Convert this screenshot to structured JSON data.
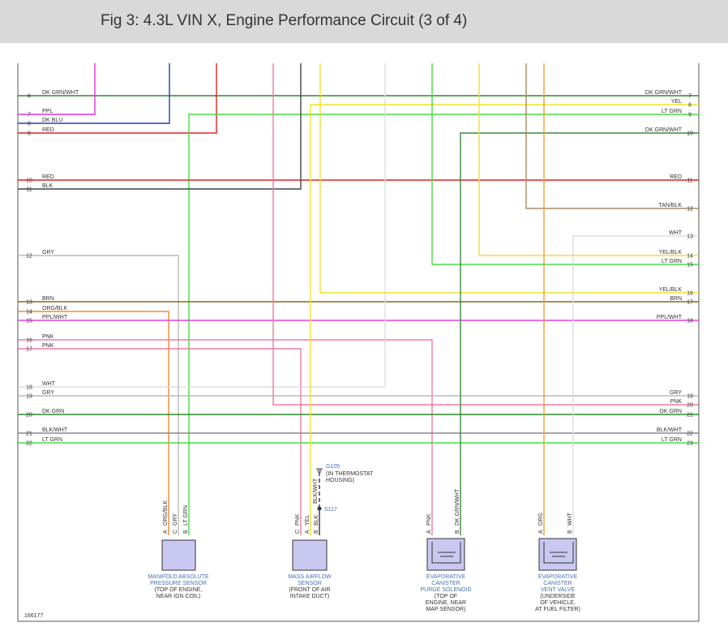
{
  "header": {
    "title": "Fig 3: 4.3L VIN X, Engine Performance Circuit (3 of 4)"
  },
  "left_pins": [
    {
      "pin": 6,
      "label": "DK GRN/WHT"
    },
    {
      "pin": 7,
      "label": "PPL"
    },
    {
      "pin": 8,
      "label": "DK BLU"
    },
    {
      "pin": 9,
      "label": "RED"
    },
    {
      "pin": 10,
      "label": "RED"
    },
    {
      "pin": 11,
      "label": "BLK"
    },
    {
      "pin": 12,
      "label": "GRY"
    },
    {
      "pin": 13,
      "label": "BRN"
    },
    {
      "pin": 14,
      "label": "ORG/BLK"
    },
    {
      "pin": 15,
      "label": "PPL/WHT"
    },
    {
      "pin": 16,
      "label": "PNK"
    },
    {
      "pin": 17,
      "label": "PNK"
    },
    {
      "pin": 18,
      "label": "WHT"
    },
    {
      "pin": 19,
      "label": "GRY"
    },
    {
      "pin": 20,
      "label": "DK GRN"
    },
    {
      "pin": 21,
      "label": "BLK/WHT"
    },
    {
      "pin": 22,
      "label": "LT GRN"
    }
  ],
  "right_pins": [
    {
      "pin": 7,
      "label": "DK GRN/WHT"
    },
    {
      "pin": 8,
      "label": "YEL"
    },
    {
      "pin": 9,
      "label": "LT GRN"
    },
    {
      "pin": 10,
      "label": "DK GRN/WHT"
    },
    {
      "pin": 11,
      "label": "RED"
    },
    {
      "pin": 12,
      "label": "TAN/BLK"
    },
    {
      "pin": 13,
      "label": "WHT"
    },
    {
      "pin": 14,
      "label": "YEL/BLK"
    },
    {
      "pin": 15,
      "label": "LT GRN"
    },
    {
      "pin": 16,
      "label": "YEL/BLK"
    },
    {
      "pin": 17,
      "label": "BRN"
    },
    {
      "pin": 18,
      "label": "PPL/WHT"
    },
    {
      "pin": 19,
      "label": "GRY"
    },
    {
      "pin": 20,
      "label": "PNK"
    },
    {
      "pin": 21,
      "label": "DK GRN"
    },
    {
      "pin": 22,
      "label": "BLK/WHT"
    },
    {
      "pin": 23,
      "label": "LT GRN"
    }
  ],
  "components": [
    {
      "name": [
        "MANIFOLD ABSOLUTE",
        "PRESSURE SENSOR"
      ],
      "location": [
        "(TOP OF ENGINE,",
        "NEAR IGN COIL)"
      ],
      "pins": [
        {
          "pin": "A",
          "wire": "ORG/BLK"
        },
        {
          "pin": "C",
          "wire": "GRY"
        },
        {
          "pin": "B",
          "wire": "LT GRN"
        }
      ]
    },
    {
      "name": [
        "MASS AIRFLOW",
        "SENSOR"
      ],
      "location": [
        "(FRONT OF AIR",
        "INTAKE DUCT)"
      ],
      "pins": [
        {
          "pin": "C",
          "wire": "PNK"
        },
        {
          "pin": "A",
          "wire": "YEL"
        },
        {
          "pin": "B",
          "wire": "BLK"
        }
      ]
    },
    {
      "name": [
        "EVAPORATIVE",
        "CANISTER",
        "PURGE SOLENOID"
      ],
      "location": [
        "(TOP OF",
        "ENGINE, NEAR",
        "MAP SENSOR)"
      ],
      "pins": [
        {
          "pin": "A",
          "wire": "PNK"
        },
        {
          "pin": "B",
          "wire": "DK GRN/WHT"
        }
      ]
    },
    {
      "name": [
        "EVAPORATIVE",
        "CANISTER",
        "VENT VALVE"
      ],
      "location": [
        "(UNDERSIDE",
        "OF VEHICLE,",
        "AT FUEL FILTER)"
      ],
      "pins": [
        {
          "pin": "A",
          "wire": "ORG"
        },
        {
          "pin": "B",
          "wire": "WHT"
        }
      ]
    }
  ],
  "ground": {
    "id": "G105",
    "note": [
      "(IN THERMOSTAT",
      "HOUSING)"
    ]
  },
  "splice": {
    "id": "S117",
    "wire": "BLK/WHT"
  },
  "figure_id": "166177"
}
